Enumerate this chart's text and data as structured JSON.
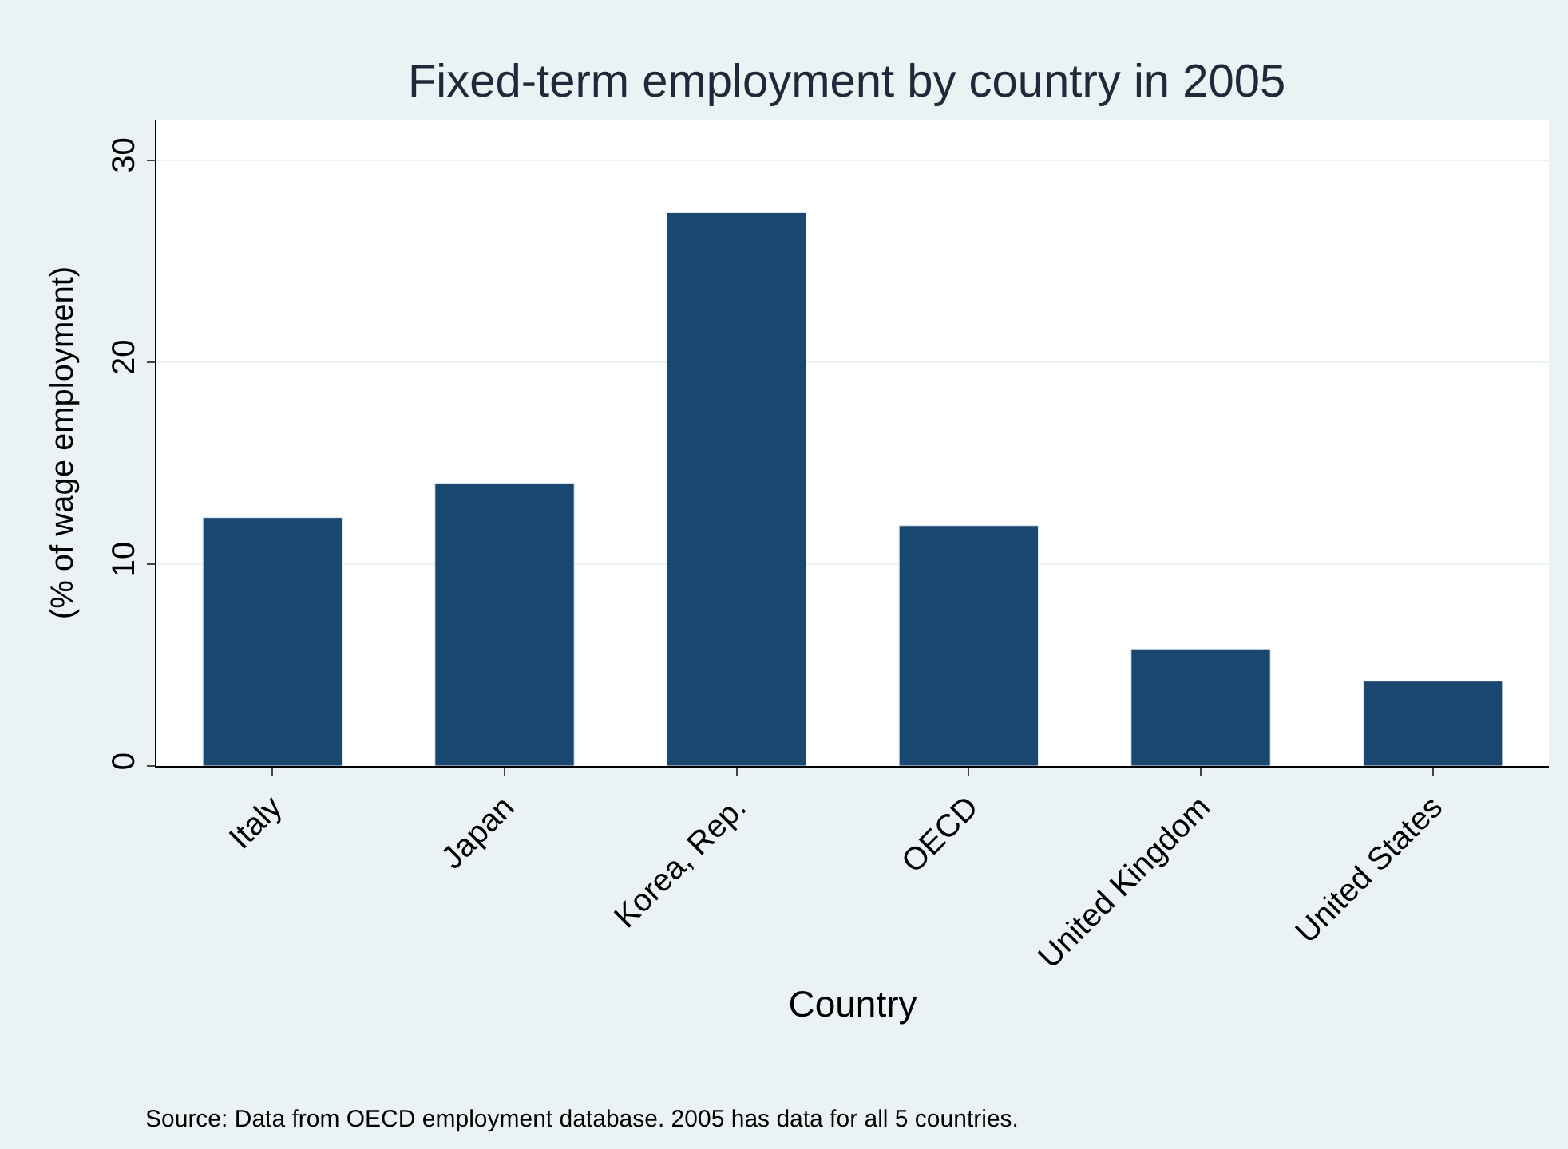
{
  "chart_data": {
    "type": "bar",
    "title": "Fixed-term employment by country in 2005",
    "xlabel": "Country",
    "ylabel": "(% of wage employment)",
    "categories": [
      "Italy",
      "Japan",
      "Korea, Rep.",
      "OECD",
      "United Kingdom",
      "United States"
    ],
    "values": [
      12.3,
      14.0,
      27.4,
      11.9,
      5.8,
      4.2
    ],
    "color": "#1a476f",
    "ylim": [
      0,
      32
    ],
    "yticks": [
      0,
      10,
      20,
      30
    ],
    "grid": "y",
    "legend": false,
    "annotations": [
      "Source: Data from OECD employment database. 2005 has data for all 5 countries."
    ]
  }
}
